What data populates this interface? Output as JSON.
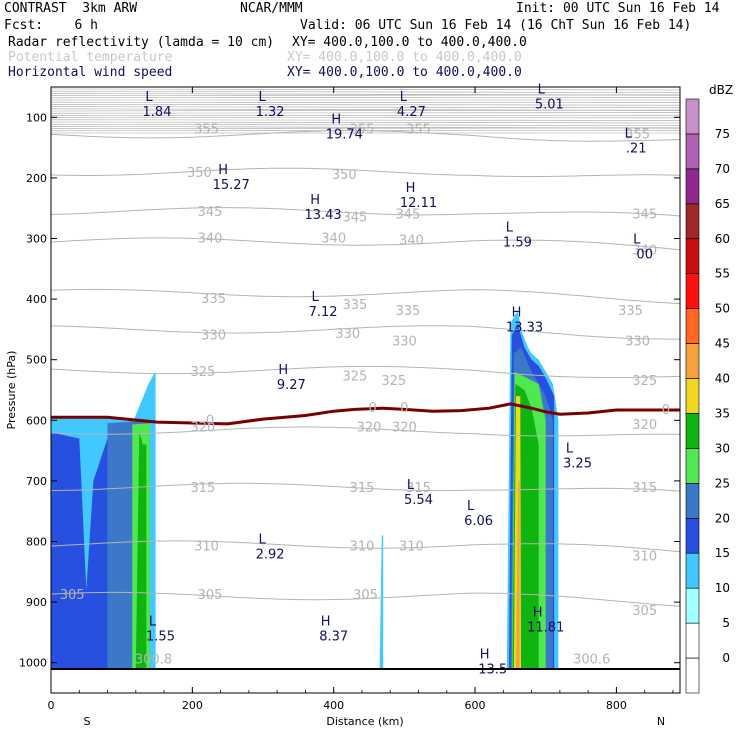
{
  "header": {
    "left1": "CONTRAST  3km ARW",
    "center1": "NCAR/MMM",
    "right1": "Init: 00 UTC Sun 16 Feb 14",
    "left2": "Fcst:    6 h",
    "right2": "Valid: 06 UTC Sun 16 Feb 14 (16 ChT Sun 16 Feb 14)",
    "field1_name": "Radar reflectivity (lamda = 10 cm)",
    "field1_xy": "XY= 400.0,100.0 to 400.0,400.0",
    "field2_name": "Potential temperature",
    "field2_xy": "XY= 400.0,100.0 to 400.0,400.0",
    "field3_name": "Horizontal wind speed",
    "field3_xy": "XY= 400.0,100.0 to 400.0,400.0"
  },
  "colors": {
    "frame": "#000000",
    "theta_contour": "#b4b4b4",
    "wind_label": "#101060",
    "freezing_line": "#7a0000",
    "stratosphere_hatch": "#a0a0a0"
  },
  "chart_data": {
    "type": "heatmap",
    "xlabel": "Distance (km)",
    "ylabel": "Pressure (hPa)",
    "xlim": [
      0,
      890
    ],
    "ylim": [
      1050,
      50
    ],
    "x_ticks": [
      "0",
      "200",
      "400",
      "600",
      "800"
    ],
    "x_tick_values": [
      0,
      200,
      400,
      600,
      800
    ],
    "y_ticks": [
      "100",
      "200",
      "300",
      "400",
      "500",
      "600",
      "700",
      "800",
      "900",
      "1000"
    ],
    "y_tick_values": [
      100,
      200,
      300,
      400,
      500,
      600,
      700,
      800,
      900,
      1000
    ],
    "end_labels": {
      "left": "S",
      "right": "N"
    },
    "colorbar": {
      "unit": "dBZ",
      "levels": [
        0,
        5,
        10,
        15,
        20,
        25,
        30,
        35,
        40,
        45,
        50,
        55,
        60,
        65,
        70,
        75
      ],
      "colors": [
        "#ffffff",
        "#a0ffff",
        "#40c8ff",
        "#2850e0",
        "#3c78c8",
        "#50e850",
        "#10b410",
        "#f0d820",
        "#f8a040",
        "#ff6820",
        "#ff1010",
        "#c81010",
        "#a02828",
        "#902890",
        "#b060b0",
        "#c890c8"
      ]
    },
    "theta_contours": [
      {
        "label": "355",
        "p": 128
      },
      {
        "label": "350",
        "p": 190
      },
      {
        "label": "345",
        "p": 255
      },
      {
        "label": "340",
        "p": 305
      },
      {
        "label": "335",
        "p": 390
      },
      {
        "label": "330",
        "p": 450
      },
      {
        "label": "325",
        "p": 517
      },
      {
        "label": "320",
        "p": 617
      },
      {
        "label": "315",
        "p": 710
      },
      {
        "label": "310",
        "p": 805
      },
      {
        "label": "305",
        "p": 890
      }
    ],
    "theta_labels": [
      {
        "text": "355",
        "x": 220,
        "p": 120
      },
      {
        "text": "355",
        "x": 440,
        "p": 120
      },
      {
        "text": "355",
        "x": 520,
        "p": 120
      },
      {
        "text": "355",
        "x": 830,
        "p": 128
      },
      {
        "text": "350",
        "x": 210,
        "p": 192
      },
      {
        "text": "350",
        "x": 415,
        "p": 195
      },
      {
        "text": "345",
        "x": 225,
        "p": 256
      },
      {
        "text": "345",
        "x": 430,
        "p": 265
      },
      {
        "text": "345",
        "x": 505,
        "p": 260
      },
      {
        "text": "345",
        "x": 840,
        "p": 260
      },
      {
        "text": "340",
        "x": 225,
        "p": 300
      },
      {
        "text": "340",
        "x": 400,
        "p": 300
      },
      {
        "text": "340",
        "x": 510,
        "p": 303
      },
      {
        "text": "340",
        "x": 840,
        "p": 320
      },
      {
        "text": "335",
        "x": 230,
        "p": 400
      },
      {
        "text": "335",
        "x": 430,
        "p": 410
      },
      {
        "text": "335",
        "x": 505,
        "p": 420
      },
      {
        "text": "335",
        "x": 820,
        "p": 420
      },
      {
        "text": "330",
        "x": 230,
        "p": 460
      },
      {
        "text": "330",
        "x": 420,
        "p": 458
      },
      {
        "text": "330",
        "x": 500,
        "p": 470
      },
      {
        "text": "330",
        "x": 830,
        "p": 470
      },
      {
        "text": "325",
        "x": 215,
        "p": 520
      },
      {
        "text": "325",
        "x": 430,
        "p": 528
      },
      {
        "text": "325",
        "x": 485,
        "p": 535
      },
      {
        "text": "325",
        "x": 840,
        "p": 535
      },
      {
        "text": "320",
        "x": 215,
        "p": 612
      },
      {
        "text": "320",
        "x": 450,
        "p": 612
      },
      {
        "text": "320",
        "x": 500,
        "p": 612
      },
      {
        "text": "320",
        "x": 840,
        "p": 608
      },
      {
        "text": "315",
        "x": 215,
        "p": 712
      },
      {
        "text": "315",
        "x": 440,
        "p": 712
      },
      {
        "text": "315",
        "x": 520,
        "p": 712
      },
      {
        "text": "315",
        "x": 840,
        "p": 712
      },
      {
        "text": "310",
        "x": 220,
        "p": 808
      },
      {
        "text": "310",
        "x": 440,
        "p": 808
      },
      {
        "text": "310",
        "x": 510,
        "p": 808
      },
      {
        "text": "310",
        "x": 840,
        "p": 825
      },
      {
        "text": "305",
        "x": 30,
        "p": 888
      },
      {
        "text": "305",
        "x": 225,
        "p": 888
      },
      {
        "text": "305",
        "x": 445,
        "p": 888
      },
      {
        "text": "305",
        "x": 840,
        "p": 915
      },
      {
        "text": "300.8",
        "x": 145,
        "p": 995
      },
      {
        "text": "300.6",
        "x": 765,
        "p": 995
      },
      {
        "text": "0",
        "x": 225,
        "p": 600
      },
      {
        "text": "0",
        "x": 455,
        "p": 580
      },
      {
        "text": "0",
        "x": 500,
        "p": 580
      },
      {
        "text": "0",
        "x": 870,
        "p": 583
      }
    ],
    "freezing_level": {
      "x": [
        0,
        80,
        150,
        250,
        300,
        360,
        400,
        430,
        470,
        500,
        540,
        580,
        620,
        650,
        680,
        700,
        720,
        760,
        800,
        890
      ],
      "p": [
        595,
        595,
        603,
        606,
        598,
        592,
        585,
        582,
        580,
        582,
        585,
        584,
        580,
        573,
        580,
        586,
        590,
        588,
        583,
        583
      ]
    },
    "wind_extrema": [
      {
        "type": "L",
        "value": "1.84",
        "x": 150,
        "p": 80
      },
      {
        "type": "L",
        "value": "1.32",
        "x": 310,
        "p": 80
      },
      {
        "type": "H",
        "value": "19.74",
        "x": 415,
        "p": 117
      },
      {
        "type": "L",
        "value": "4.27",
        "x": 510,
        "p": 80
      },
      {
        "type": "L",
        "value": "5.01",
        "x": 705,
        "p": 67
      },
      {
        "type": "L",
        "value": ".21",
        "x": 828,
        "p": 140
      },
      {
        "type": "H",
        "value": "15.27",
        "x": 255,
        "p": 200
      },
      {
        "type": "H",
        "value": "13.43",
        "x": 385,
        "p": 250
      },
      {
        "type": "H",
        "value": "12.11",
        "x": 520,
        "p": 230
      },
      {
        "type": "L",
        "value": "1.59",
        "x": 660,
        "p": 295
      },
      {
        "type": "L",
        "value": "00",
        "x": 840,
        "p": 315
      },
      {
        "type": "L",
        "value": "7.12",
        "x": 385,
        "p": 410
      },
      {
        "type": "H",
        "value": "13.33",
        "x": 670,
        "p": 435
      },
      {
        "type": "H",
        "value": "9.27",
        "x": 340,
        "p": 530
      },
      {
        "type": "L",
        "value": "3.25",
        "x": 745,
        "p": 660
      },
      {
        "type": "L",
        "value": "5.54",
        "x": 520,
        "p": 720
      },
      {
        "type": "L",
        "value": "6.06",
        "x": 605,
        "p": 755
      },
      {
        "type": "L",
        "value": "2.92",
        "x": 310,
        "p": 810
      },
      {
        "type": "L",
        "value": "1.55",
        "x": 155,
        "p": 945
      },
      {
        "type": "H",
        "value": "8.37",
        "x": 400,
        "p": 945
      },
      {
        "type": "H",
        "value": "11.81",
        "x": 700,
        "p": 930
      },
      {
        "type": "H",
        "value": "13.5",
        "x": 625,
        "p": 1000
      }
    ],
    "reflectivity_regions": [
      {
        "dbz": 10,
        "x": [
          0,
          0,
          118,
          138,
          145,
          148,
          148,
          0
        ],
        "p": [
          1010,
          597,
          597,
          540,
          525,
          520,
          1010,
          1010
        ]
      },
      {
        "dbz": 15,
        "x": [
          0,
          0,
          40,
          50,
          60,
          80,
          120,
          140,
          140,
          0
        ],
        "p": [
          1010,
          620,
          630,
          880,
          700,
          630,
          605,
          600,
          1010,
          1010
        ]
      },
      {
        "dbz": 20,
        "x": [
          80,
          80,
          140,
          140
        ],
        "p": [
          1010,
          605,
          600,
          1010
        ]
      },
      {
        "dbz": 25,
        "x": [
          115,
          115,
          140,
          140
        ],
        "p": [
          1010,
          607,
          605,
          1010
        ]
      },
      {
        "dbz": 30,
        "x": [
          120,
          125,
          130,
          135,
          135,
          120
        ],
        "p": [
          1010,
          620,
          640,
          640,
          1010,
          1010
        ]
      },
      {
        "dbz": 10,
        "x": [
          465,
          468,
          470,
          470,
          465
        ],
        "p": [
          1010,
          790,
          790,
          1010,
          1010
        ]
      },
      {
        "dbz": 10,
        "x": [
          645,
          650,
          660,
          668,
          675,
          680,
          690,
          700,
          710,
          718,
          718,
          645
        ],
        "p": [
          1010,
          440,
          420,
          460,
          480,
          490,
          500,
          520,
          540,
          600,
          1010,
          1010
        ]
      },
      {
        "dbz": 15,
        "x": [
          648,
          652,
          660,
          670,
          680,
          690,
          700,
          712,
          712,
          648
        ],
        "p": [
          1010,
          460,
          440,
          480,
          500,
          510,
          530,
          560,
          1010,
          1010
        ]
      },
      {
        "dbz": 20,
        "x": [
          650,
          655,
          665,
          680,
          700,
          710,
          710,
          650
        ],
        "p": [
          1010,
          490,
          480,
          520,
          560,
          600,
          1010,
          1010
        ]
      },
      {
        "dbz": 25,
        "x": [
          652,
          656,
          690,
          700,
          700,
          652
        ],
        "p": [
          1010,
          520,
          540,
          600,
          1010,
          1010
        ]
      },
      {
        "dbz": 30,
        "x": [
          653,
          657,
          670,
          680,
          690,
          690,
          653
        ],
        "p": [
          1010,
          540,
          550,
          580,
          640,
          1010,
          1010
        ]
      },
      {
        "dbz": 35,
        "x": [
          655,
          658,
          664,
          665,
          655
        ],
        "p": [
          1010,
          560,
          560,
          1010,
          1010
        ]
      },
      {
        "dbz": 40,
        "x": [
          658,
          661,
          663,
          663,
          658
        ],
        "p": [
          1010,
          700,
          700,
          1010,
          1010
        ]
      }
    ]
  }
}
